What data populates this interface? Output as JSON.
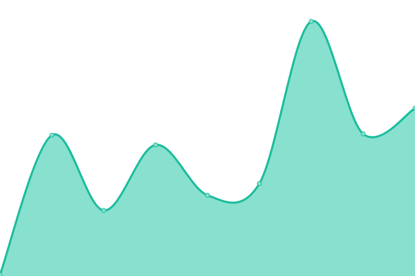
{
  "chart_data": {
    "type": "area",
    "title": "",
    "xlabel": "",
    "ylabel": "",
    "x": [
      0,
      1,
      2,
      3,
      4,
      5,
      6,
      7,
      8
    ],
    "series": [
      {
        "values": [
          2,
          204,
          95,
          190,
          117,
          134,
          369,
          206,
          243
        ]
      }
    ],
    "ylim": [
      0,
      400
    ],
    "grid": false,
    "axes_visible": false,
    "curve": "smooth",
    "colors": {
      "line": "#1abc9c",
      "fill": "#88e0cf",
      "marker_fill": "#88e0cf"
    }
  }
}
